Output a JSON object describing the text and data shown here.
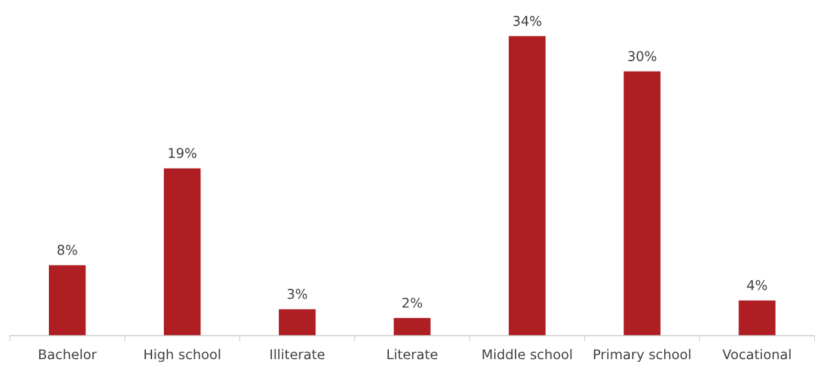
{
  "chart_data": {
    "type": "bar",
    "categories": [
      "Bachelor",
      "High school",
      "Illiterate",
      "Literate",
      "Middle school",
      "Primary school",
      "Vocational"
    ],
    "values": [
      8,
      19,
      3,
      2,
      34,
      30,
      4
    ],
    "value_labels": [
      "8%",
      "19%",
      "3%",
      "2%",
      "34%",
      "30%",
      "4%"
    ],
    "color": "#ae1e23",
    "tick_labels": "x",
    "grid": false,
    "legend": false
  }
}
